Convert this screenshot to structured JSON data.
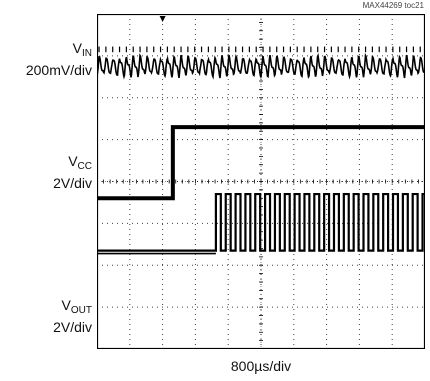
{
  "figure_id": "MAX44269 toc21",
  "chart_data": {
    "type": "line",
    "title": "",
    "xlabel": "800µs/div",
    "channels": [
      {
        "symbol": "V",
        "subscript": "IN",
        "scale": "200mV/div"
      },
      {
        "symbol": "V",
        "subscript": "CC",
        "scale": "2V/div"
      },
      {
        "symbol": "V",
        "subscript": "OUT",
        "scale": "2V/div"
      }
    ],
    "grid": {
      "divisions_x": 10,
      "divisions_y": 8,
      "on": true
    },
    "x_range_ms": [
      0,
      8
    ],
    "series": [
      {
        "name": "VIN",
        "waveform": "ripple",
        "level_div": 6.75,
        "amplitude_div": 0.45,
        "cycles": 48
      },
      {
        "name": "VCC",
        "waveform": "step",
        "low_div": 3.6,
        "high_div": 5.3,
        "rise_ms": 1.85,
        "fall_ms": 8.97
      },
      {
        "name": "VOUT",
        "waveform": "pulse_train",
        "low_div": 2.35,
        "high_div": 3.7,
        "start_ms": 2.9,
        "stop_ms": 8.9,
        "pulses": 25
      }
    ]
  }
}
